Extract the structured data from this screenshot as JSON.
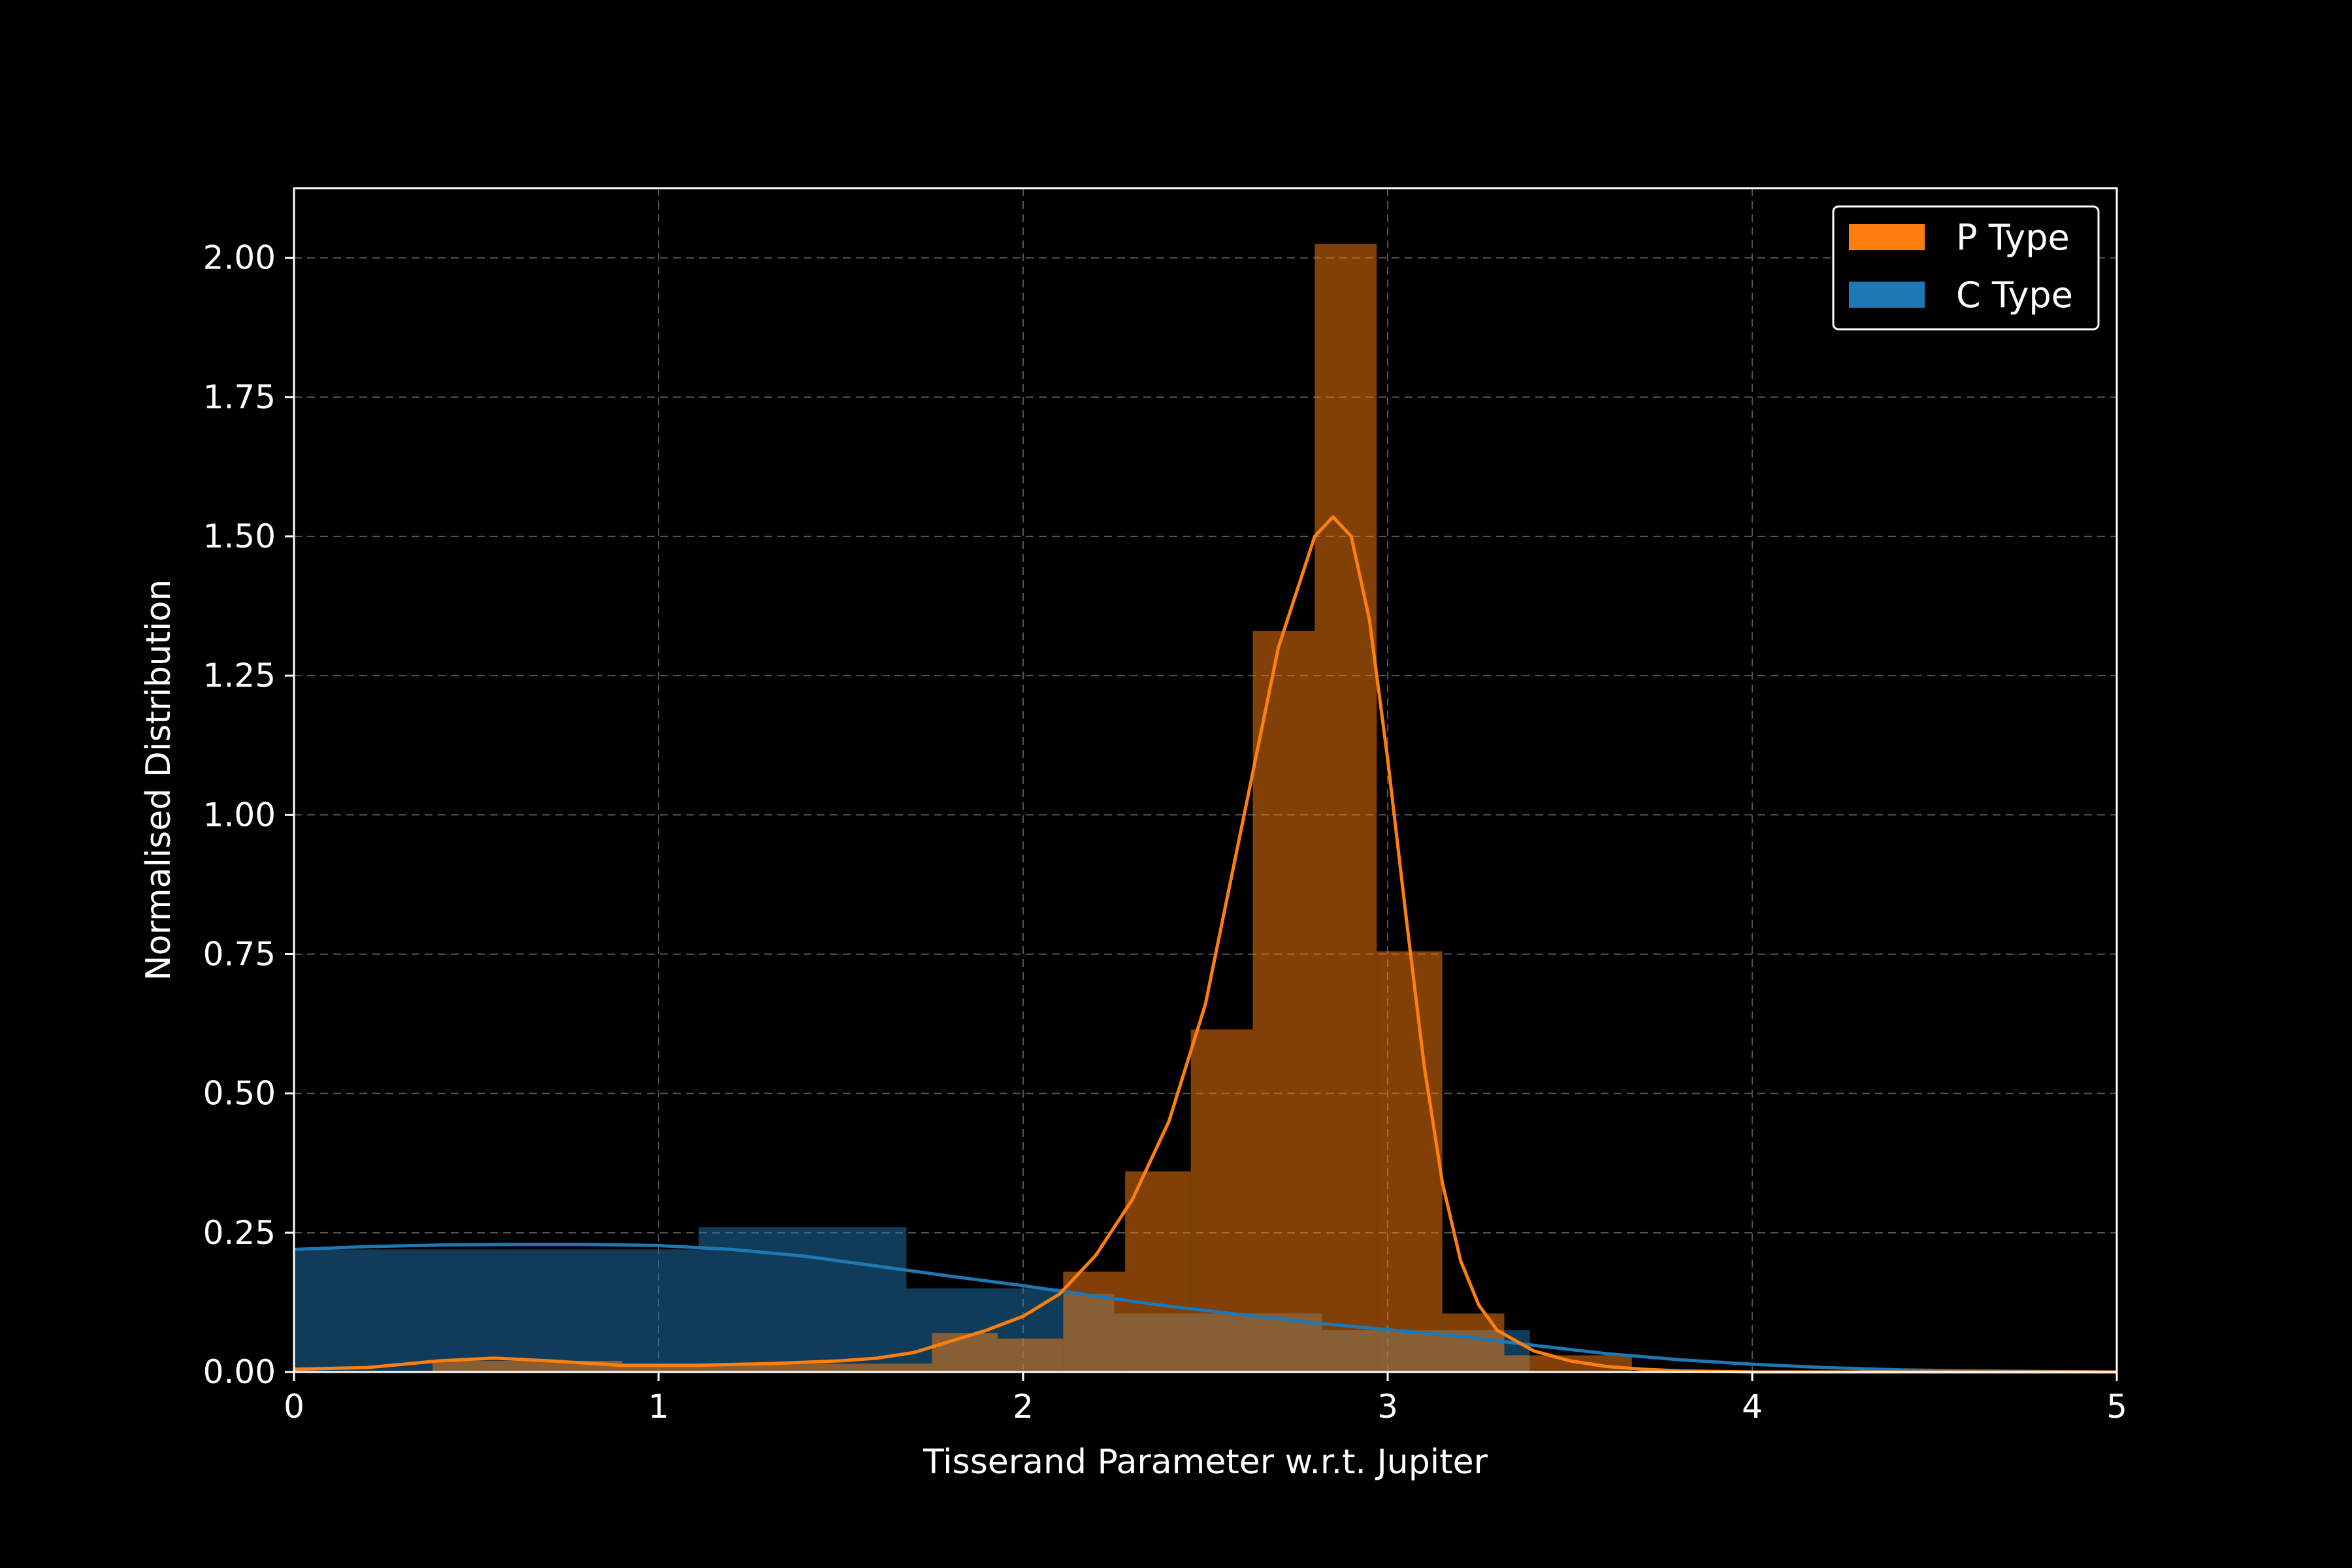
{
  "chart_data": {
    "type": "histogram",
    "xlabel": "Tisserand Parameter w.r.t. Jupiter",
    "ylabel": "Normalised Distribution",
    "xlim": [
      0,
      5
    ],
    "ylim": [
      0,
      2.125
    ],
    "xticks": [
      0,
      1,
      2,
      3,
      4,
      5
    ],
    "xtick_labels": [
      "0",
      "1",
      "2",
      "3",
      "4",
      "5"
    ],
    "yticks": [
      0,
      0.25,
      0.5,
      0.75,
      1.0,
      1.25,
      1.5,
      1.75,
      2.0
    ],
    "ytick_labels": [
      "0.00",
      "0.25",
      "0.50",
      "0.75",
      "1.00",
      "1.25",
      "1.50",
      "1.75",
      "2.00"
    ],
    "grid": true,
    "legend_position": "top-right",
    "series": [
      {
        "name": "C Type",
        "color": "#1f77b4",
        "bins": [
          {
            "x0": 0.0,
            "x1": 0.54,
            "height": 0.22
          },
          {
            "x0": 0.54,
            "x1": 1.11,
            "height": 0.22
          },
          {
            "x0": 1.11,
            "x1": 1.68,
            "height": 0.26
          },
          {
            "x0": 1.68,
            "x1": 2.11,
            "height": 0.15
          },
          {
            "x0": 2.11,
            "x1": 2.25,
            "height": 0.14
          },
          {
            "x0": 2.25,
            "x1": 2.82,
            "height": 0.105
          },
          {
            "x0": 2.82,
            "x1": 3.39,
            "height": 0.075
          }
        ],
        "kde": {
          "x": [
            0,
            0.2,
            0.4,
            0.6,
            0.8,
            1.0,
            1.2,
            1.4,
            1.6,
            1.8,
            2.0,
            2.2,
            2.4,
            2.6,
            2.8,
            3.0,
            3.2,
            3.4,
            3.6,
            3.8,
            4.0,
            4.2,
            4.4,
            4.6,
            4.8,
            5.0
          ],
          "y": [
            0.22,
            0.225,
            0.228,
            0.229,
            0.229,
            0.227,
            0.22,
            0.208,
            0.19,
            0.172,
            0.155,
            0.136,
            0.118,
            0.103,
            0.088,
            0.076,
            0.064,
            0.048,
            0.033,
            0.022,
            0.014,
            0.008,
            0.004,
            0.002,
            0.001,
            0.0
          ]
        }
      },
      {
        "name": "P Type",
        "color": "#ff7f0e",
        "bins": [
          {
            "x0": 0.38,
            "x1": 0.9,
            "height": 0.02
          },
          {
            "x0": 0.9,
            "x1": 1.75,
            "height": 0.015
          },
          {
            "x0": 1.75,
            "x1": 1.93,
            "height": 0.07
          },
          {
            "x0": 1.93,
            "x1": 2.11,
            "height": 0.06
          },
          {
            "x0": 2.11,
            "x1": 2.28,
            "height": 0.18
          },
          {
            "x0": 2.28,
            "x1": 2.46,
            "height": 0.36
          },
          {
            "x0": 2.46,
            "x1": 2.63,
            "height": 0.615
          },
          {
            "x0": 2.63,
            "x1": 2.8,
            "height": 1.33
          },
          {
            "x0": 2.8,
            "x1": 2.97,
            "height": 2.025
          },
          {
            "x0": 2.97,
            "x1": 3.15,
            "height": 0.755
          },
          {
            "x0": 3.15,
            "x1": 3.32,
            "height": 0.105
          },
          {
            "x0": 3.32,
            "x1": 3.67,
            "height": 0.03
          }
        ],
        "kde": {
          "x": [
            0,
            0.2,
            0.4,
            0.55,
            0.7,
            0.9,
            1.1,
            1.3,
            1.5,
            1.6,
            1.7,
            1.8,
            1.9,
            2.0,
            2.1,
            2.2,
            2.3,
            2.4,
            2.5,
            2.6,
            2.7,
            2.8,
            2.85,
            2.9,
            2.95,
            3.0,
            3.05,
            3.1,
            3.15,
            3.2,
            3.25,
            3.3,
            3.4,
            3.5,
            3.6,
            3.7,
            3.8,
            4.0,
            4.5,
            5.0
          ],
          "y": [
            0.005,
            0.008,
            0.02,
            0.025,
            0.02,
            0.012,
            0.012,
            0.015,
            0.02,
            0.025,
            0.035,
            0.055,
            0.075,
            0.1,
            0.14,
            0.21,
            0.31,
            0.45,
            0.66,
            0.98,
            1.3,
            1.5,
            1.535,
            1.5,
            1.35,
            1.1,
            0.82,
            0.55,
            0.34,
            0.2,
            0.12,
            0.075,
            0.038,
            0.02,
            0.01,
            0.005,
            0.002,
            0.0,
            0.0,
            0.0
          ]
        }
      }
    ],
    "legend": [
      {
        "label": "P Type",
        "color": "#ff7f0e"
      },
      {
        "label": "C Type",
        "color": "#1f77b4"
      }
    ]
  }
}
